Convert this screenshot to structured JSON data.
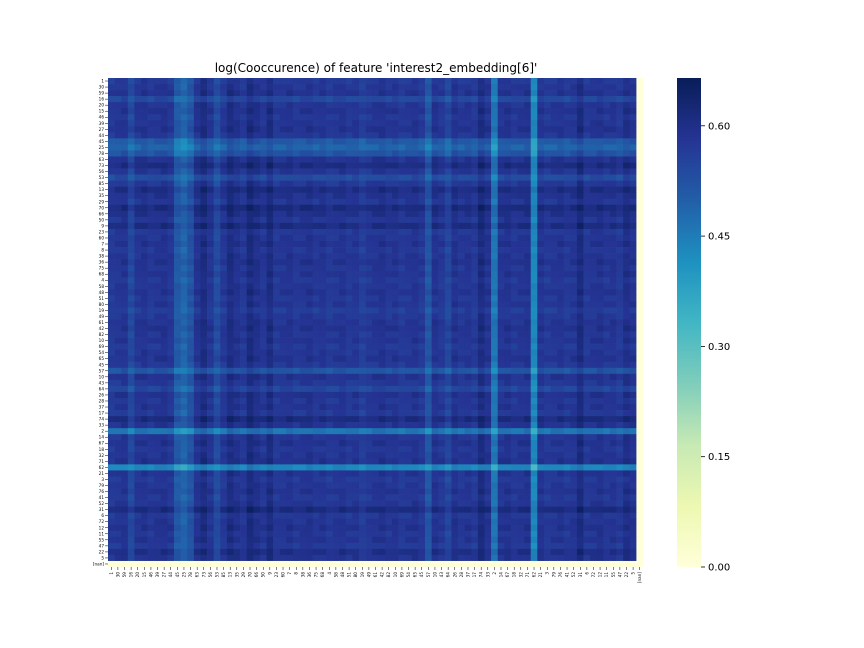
{
  "chart_data": {
    "type": "heatmap",
    "title": "log(Cooccurence) of feature 'interest2_embedding[6]'",
    "labels": [
      "1",
      "30",
      "59",
      "16",
      "20",
      "15",
      "46",
      "39",
      "27",
      "44",
      "45",
      "25",
      "78",
      "63",
      "73",
      "56",
      "53",
      "85",
      "13",
      "35",
      "29",
      "70",
      "66",
      "50",
      "9",
      "23",
      "60",
      "7",
      "8",
      "38",
      "36",
      "75",
      "68",
      "4",
      "58",
      "48",
      "51",
      "80",
      "19",
      "49",
      "61",
      "42",
      "82",
      "10",
      "69",
      "54",
      "65",
      "45",
      "57",
      "10",
      "43",
      "64",
      "26",
      "28",
      "37",
      "17",
      "74",
      "33",
      "2",
      "14",
      "67",
      "18",
      "32",
      "71",
      "62",
      "21",
      "3",
      "79",
      "76",
      "41",
      "52",
      "31",
      "6",
      "72",
      "12",
      "11",
      "55",
      "47",
      "22",
      "5",
      "[nan]"
    ],
    "value_range": [
      0.0,
      0.665
    ],
    "base_value": 0.58,
    "weak_labels": [
      {
        "label": "25",
        "value": 0.43
      },
      {
        "label": "78",
        "value": 0.47
      },
      {
        "label": "53",
        "value": 0.48
      },
      {
        "label": "45",
        "value": 0.44
      },
      {
        "label": "57",
        "value": 0.46
      },
      {
        "label": "2",
        "value": 0.38
      },
      {
        "label": "62",
        "value": 0.33
      },
      {
        "label": "16",
        "value": 0.52
      },
      {
        "label": "64",
        "value": 0.51
      },
      {
        "label": "19",
        "value": 0.53
      }
    ],
    "strong_labels": [
      {
        "label": "73",
        "value": 0.65
      },
      {
        "label": "70",
        "value": 0.64
      },
      {
        "label": "13",
        "value": 0.63
      },
      {
        "label": "74",
        "value": 0.645
      },
      {
        "label": "31",
        "value": 0.63
      },
      {
        "label": "9",
        "value": 0.625
      },
      {
        "label": "66",
        "value": 0.625
      },
      {
        "label": "22",
        "value": 0.62
      }
    ],
    "nan_value": 0.0,
    "colormap": "YlGnBu",
    "colorbar_ticks": [
      "0.00",
      "0.15",
      "0.30",
      "0.45",
      "0.60"
    ],
    "colorbar_tick_values": [
      0.0,
      0.15,
      0.3,
      0.45,
      0.6
    ]
  }
}
